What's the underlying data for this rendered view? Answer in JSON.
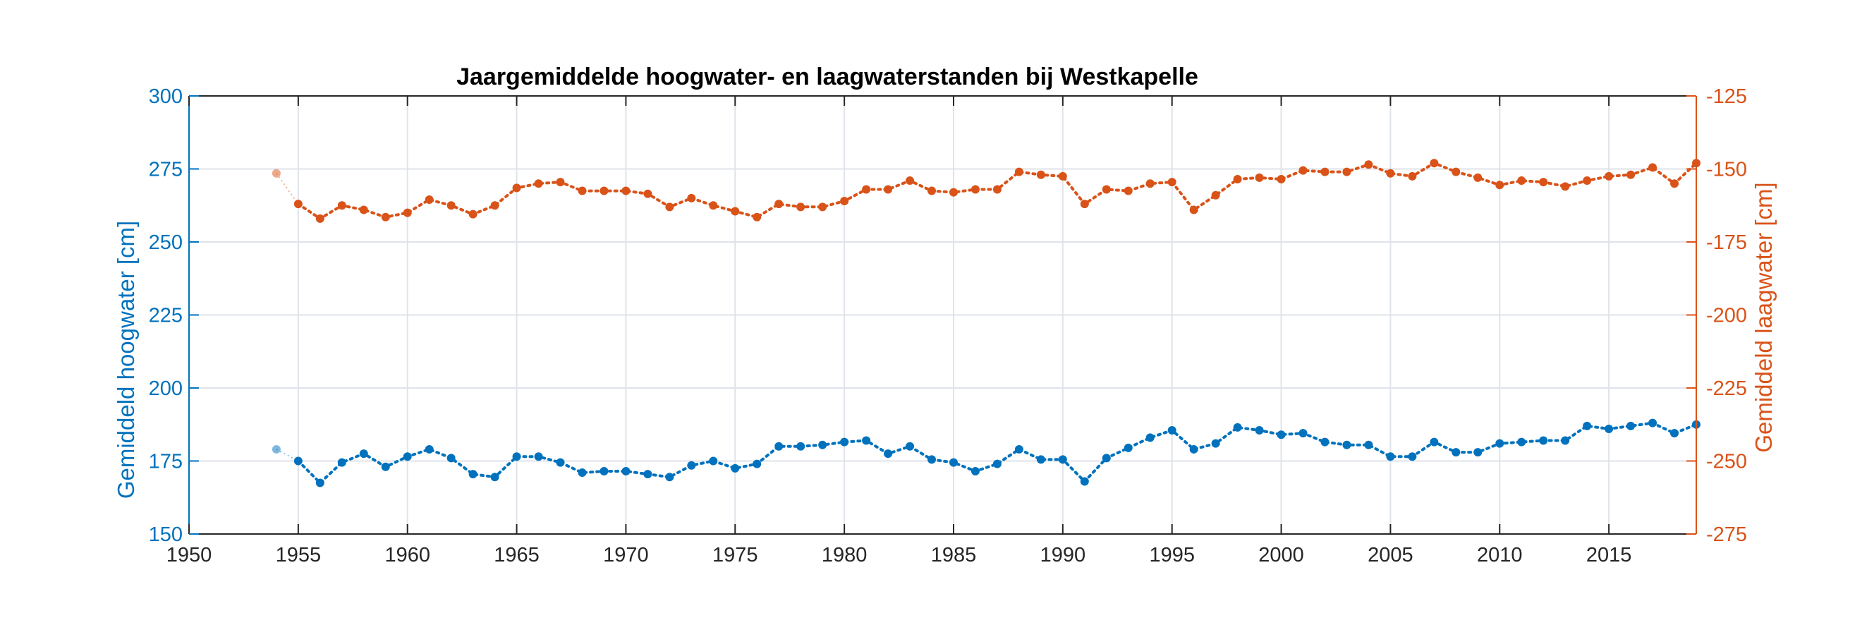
{
  "chart_data": {
    "type": "line",
    "title": "Jaargemiddelde hoogwater- en laagwaterstanden bij Westkapelle",
    "xlabel": "",
    "ylabel_left": "Gemiddeld hoogwater [cm]",
    "ylabel_right": "Gemiddeld laagwater [cm]",
    "xlim": [
      1950,
      2019
    ],
    "ylim_left": [
      150,
      300
    ],
    "ylim_right": [
      -275,
      -125
    ],
    "x_ticks": [
      1950,
      1955,
      1960,
      1965,
      1970,
      1975,
      1980,
      1985,
      1990,
      1995,
      2000,
      2005,
      2010,
      2015
    ],
    "y_ticks_left": [
      150,
      175,
      200,
      225,
      250,
      275,
      300
    ],
    "y_ticks_right": [
      -275,
      -250,
      -225,
      -200,
      -175,
      -150,
      -125
    ],
    "grid": true,
    "colors": {
      "hoogwater": "#0072BD",
      "laagwater": "#D95319",
      "axis_left": "#0072BD",
      "axis_right": "#D95319",
      "grid": "#dfe3ea",
      "frame": "#262626"
    },
    "series": [
      {
        "axis": "left",
        "x": [
          1954,
          1955,
          1956,
          1957,
          1958,
          1959,
          1960,
          1961,
          1962,
          1963,
          1964,
          1965,
          1966,
          1967,
          1968,
          1969,
          1970,
          1971,
          1972,
          1973,
          1974,
          1975,
          1976,
          1977,
          1978,
          1979,
          1980,
          1981,
          1982,
          1983,
          1984,
          1985,
          1986,
          1987,
          1988,
          1989,
          1990,
          1991,
          1992,
          1993,
          1994,
          1995,
          1996,
          1997,
          1998,
          1999,
          2000,
          2001,
          2002,
          2003,
          2004,
          2005,
          2006,
          2007,
          2008,
          2009,
          2010,
          2011,
          2012,
          2013,
          2014,
          2015,
          2016,
          2017,
          2018,
          2019
        ],
        "values": [
          179,
          175,
          167.5,
          174.5,
          177.5,
          173,
          176.5,
          179,
          176,
          170.5,
          169.5,
          176.5,
          176.5,
          174.5,
          171,
          171.5,
          171.5,
          170.5,
          169.5,
          173.5,
          175,
          172.5,
          174,
          180,
          180,
          180.5,
          181.5,
          182,
          177.5,
          180,
          175.5,
          174.5,
          171.5,
          174,
          179,
          175.5,
          175.5,
          168,
          176,
          179.5,
          183,
          185.5,
          179,
          181,
          186.5,
          185.5,
          184,
          184.5,
          181.5,
          180.5,
          180.5,
          176.5,
          176.5,
          181.5,
          178,
          178,
          181,
          181.5,
          182,
          182,
          187,
          186,
          187,
          188,
          184.5,
          187.5
        ]
      },
      {
        "axis": "right",
        "x": [
          1954,
          1955,
          1956,
          1957,
          1958,
          1959,
          1960,
          1961,
          1962,
          1963,
          1964,
          1965,
          1966,
          1967,
          1968,
          1969,
          1970,
          1971,
          1972,
          1973,
          1974,
          1975,
          1976,
          1977,
          1978,
          1979,
          1980,
          1981,
          1982,
          1983,
          1984,
          1985,
          1986,
          1987,
          1988,
          1989,
          1990,
          1991,
          1992,
          1993,
          1994,
          1995,
          1996,
          1997,
          1998,
          1999,
          2000,
          2001,
          2002,
          2003,
          2004,
          2005,
          2006,
          2007,
          2008,
          2009,
          2010,
          2011,
          2012,
          2013,
          2014,
          2015,
          2016,
          2017,
          2018,
          2019
        ],
        "values": [
          -151.5,
          -162,
          -167,
          -162.5,
          -164,
          -166.5,
          -165,
          -160.5,
          -162.5,
          -165.5,
          -162.5,
          -156.5,
          -155,
          -154.5,
          -157.5,
          -157.5,
          -157.5,
          -158.5,
          -163,
          -160,
          -162.5,
          -164.5,
          -166.5,
          -162,
          -163,
          -163,
          -161,
          -157,
          -157,
          -154,
          -157.5,
          -158,
          -157,
          -157,
          -151,
          -152,
          -152.5,
          -162,
          -157,
          -157.5,
          -155,
          -154.5,
          -164,
          -159,
          -153.5,
          -153,
          -153.5,
          -150.5,
          -151,
          -151,
          -148.5,
          -151.5,
          -152.5,
          -148,
          -151,
          -153,
          -155.5,
          -154,
          -154.5,
          -156,
          -154,
          -152.5,
          -152,
          -149.5,
          -155,
          -148
        ]
      }
    ]
  }
}
